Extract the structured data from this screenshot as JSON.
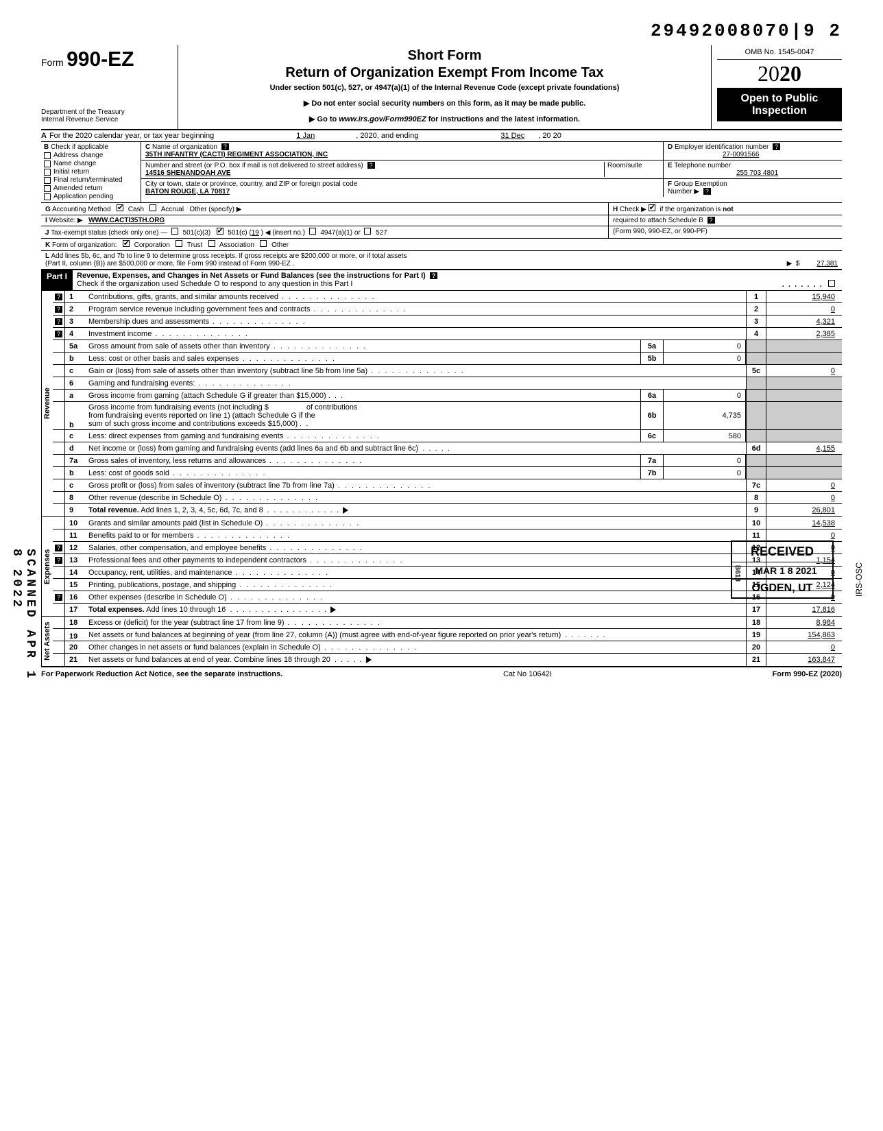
{
  "top_number": "29492008070|9  2",
  "form": {
    "prefix": "Form",
    "number": "990-EZ",
    "short_form": "Short Form",
    "title": "Return of Organization Exempt From Income Tax",
    "subtitle": "Under section 501(c), 527, or 4947(a)(1) of the Internal Revenue Code (except private foundations)",
    "warn1": "▶ Do not enter social security numbers on this form, as it may be made public.",
    "warn2_pre": "▶ Go to ",
    "warn2_url": "www.irs.gov/Form990EZ",
    "warn2_post": " for instructions and the latest information.",
    "dept1": "Department of the Treasury",
    "dept2": "Internal Revenue Service",
    "omb": "OMB No. 1545-0047",
    "year_outline": "20",
    "year_bold": "20",
    "open1": "Open to Public",
    "open2": "Inspection"
  },
  "rowA": {
    "label": "A",
    "text": "For the 2020 calendar year, or tax year beginning",
    "begin": "1 Jan",
    "mid": ", 2020, and ending",
    "end": "31 Dec",
    "tail": ", 20   20"
  },
  "B": {
    "label": "B",
    "check_if": "Check if applicable",
    "items": [
      "Address change",
      "Name change",
      "Initial return",
      "Final return/terminated",
      "Amended return",
      "Application pending"
    ]
  },
  "C": {
    "label": "C",
    "name_lbl": "Name of organization",
    "name": "35TH INFANTRY (CACTI)  REGIMENT ASSOCIATION, INC",
    "street_lbl": "Number and street (or P.O. box if mail is not delivered to street address)",
    "room_lbl": "Room/suite",
    "street": "14516 SHENANDOAH AVE",
    "city_lbl": "City or town, state or province, country, and ZIP or foreign postal code",
    "city": "BATON ROUGE, LA 70817"
  },
  "D": {
    "label": "D",
    "lbl": "Employer identification number",
    "val": "27-0091566"
  },
  "E": {
    "label": "E",
    "lbl": "Telephone number",
    "val": "255 703 4801"
  },
  "F": {
    "label": "F",
    "lbl": "Group Exemption",
    "lbl2": "Number ▶"
  },
  "G": {
    "label": "G",
    "lbl": "Accounting Method",
    "cash": "Cash",
    "accrual": "Accrual",
    "other": "Other (specify) ▶"
  },
  "H": {
    "label": "H",
    "text1": "Check ▶",
    "text2": "if the organization is ",
    "text3": "not",
    "text4": "required to attach Schedule B",
    "text5": "(Form 990, 990-EZ, or 990-PF)"
  },
  "I": {
    "label": "I",
    "lbl": "Website: ▶",
    "val": "WWW.CACTI35TH.ORG"
  },
  "J": {
    "label": "J",
    "lbl": "Tax-exempt status (check only one) —",
    "c3": "501(c)(3)",
    "c": "501(c) (",
    "cn": "19",
    "cpost": ") ◀ (insert no.)",
    "a1": "4947(a)(1) or",
    "s527": "527"
  },
  "K": {
    "label": "K",
    "lbl": "Form of organization:",
    "corp": "Corporation",
    "trust": "Trust",
    "assoc": "Association",
    "other": "Other"
  },
  "L": {
    "label": "L",
    "text1": "Add lines 5b, 6c, and 7b to line 9 to determine gross receipts. If gross receipts are $200,000 or more, or if total assets",
    "text2": "(Part II, column (B)) are $500,000 or more, file Form 990 instead of Form 990-EZ .",
    "val": "27,381"
  },
  "part1": {
    "hdr": "Part I",
    "title": "Revenue, Expenses, and Changes in Net Assets or Fund Balances (see the instructions for Part I)",
    "check_line": "Check if the organization used Schedule O to respond to any question in this Part I"
  },
  "revenue_label": "Revenue",
  "expenses_label": "Expenses",
  "netassets_label": "Net Assets",
  "lines": {
    "l1": {
      "no": "1",
      "desc": "Contributions, gifts, grants, and similar amounts received",
      "rno": "1",
      "rval": "15,940",
      "q": true
    },
    "l2": {
      "no": "2",
      "desc": "Program service revenue including government fees and contracts",
      "rno": "2",
      "rval": "0",
      "q": true
    },
    "l3": {
      "no": "3",
      "desc": "Membership dues and assessments",
      "rno": "3",
      "rval": "4,321",
      "q": true
    },
    "l4": {
      "no": "4",
      "desc": "Investment income",
      "rno": "4",
      "rval": "2,385",
      "q": true
    },
    "l5a": {
      "no": "5a",
      "desc": "Gross amount from sale of assets other than inventory",
      "mno": "5a",
      "mval": "0"
    },
    "l5b": {
      "no": "b",
      "desc": "Less: cost or other basis and sales expenses",
      "mno": "5b",
      "mval": "0"
    },
    "l5c": {
      "no": "c",
      "desc": "Gain or (loss) from sale of assets other than inventory (subtract line 5b from line 5a)",
      "rno": "5c",
      "rval": "0"
    },
    "l6": {
      "no": "6",
      "desc": "Gaming and fundraising events:"
    },
    "l6a": {
      "no": "a",
      "desc": "Gross income from gaming (attach Schedule G if greater than $15,000)",
      "mno": "6a",
      "mval": "0"
    },
    "l6b": {
      "no": "b",
      "desc_pre": "Gross income from fundraising events (not including  $",
      "desc_mid": "of contributions",
      "desc2": "from fundraising events reported on line 1) (attach Schedule G if the",
      "desc3": "sum of such gross income and contributions exceeds $15,000)",
      "mno": "6b",
      "mval": "4,735"
    },
    "l6c": {
      "no": "c",
      "desc": "Less: direct expenses from gaming and fundraising events",
      "mno": "6c",
      "mval": "580"
    },
    "l6d": {
      "no": "d",
      "desc": "Net income or (loss) from gaming and fundraising events (add lines 6a and 6b and subtract line 6c)",
      "rno": "6d",
      "rval": "4,155"
    },
    "l7a": {
      "no": "7a",
      "desc": "Gross sales of inventory, less returns and allowances",
      "mno": "7a",
      "mval": "0"
    },
    "l7b": {
      "no": "b",
      "desc": "Less: cost of goods sold",
      "mno": "7b",
      "mval": "0"
    },
    "l7c": {
      "no": "c",
      "desc": "Gross profit or (loss) from sales of inventory (subtract line 7b from line 7a)",
      "rno": "7c",
      "rval": "0"
    },
    "l8": {
      "no": "8",
      "desc": "Other revenue (describe in Schedule O)",
      "rno": "8",
      "rval": "0"
    },
    "l9": {
      "no": "9",
      "desc": "Total revenue. Add lines 1, 2, 3, 4, 5c, 6d, 7c, and 8",
      "rno": "9",
      "rval": "26,801",
      "bold": true
    },
    "l10": {
      "no": "10",
      "desc": "Grants and similar amounts paid (list in Schedule O)",
      "rno": "10",
      "rval": "14,538"
    },
    "l11": {
      "no": "11",
      "desc": "Benefits paid to or for members",
      "rno": "11",
      "rval": "0"
    },
    "l12": {
      "no": "12",
      "desc": "Salaries, other compensation, and employee benefits",
      "rno": "12",
      "rval": "0",
      "q": true
    },
    "l13": {
      "no": "13",
      "desc": "Professional fees and other payments to independent contractors",
      "rno": "13",
      "rval": "1,154",
      "q": true
    },
    "l14": {
      "no": "14",
      "desc": "Occupancy, rent, utilities, and maintenance",
      "rno": "14",
      "rval": "0"
    },
    "l15": {
      "no": "15",
      "desc": "Printing, publications, postage, and shipping",
      "rno": "15",
      "rval": "2,124"
    },
    "l16": {
      "no": "16",
      "desc": "Other expenses (describe in Schedule O)",
      "rno": "16",
      "rval": "0",
      "q": true
    },
    "l17": {
      "no": "17",
      "desc": "Total expenses. Add lines 10 through 16",
      "rno": "17",
      "rval": "17,816",
      "bold": true
    },
    "l18": {
      "no": "18",
      "desc": "Excess or (deficit) for the year (subtract line 17 from line 9)",
      "rno": "18",
      "rval": "8,984"
    },
    "l19": {
      "no": "19",
      "desc": "Net assets or fund balances at beginning of year (from line 27, column (A)) (must agree with end-of-year figure reported on prior year's return)",
      "rno": "19",
      "rval": "154,863"
    },
    "l20": {
      "no": "20",
      "desc": "Other changes in net assets or fund balances (explain in Schedule O)",
      "rno": "20",
      "rval": "0"
    },
    "l21": {
      "no": "21",
      "desc": "Net assets or fund balances at end of year. Combine lines 18 through 20",
      "rno": "21",
      "rval": "163,847"
    }
  },
  "stamp": {
    "received": "RECEIVED",
    "b618": "B618",
    "date": "MAR 1 8 2021",
    "loc": "OGDEN, UT",
    "irs": "IRS-OSC"
  },
  "side_stamp": "SCANNED APR 1 8 2022",
  "footer": {
    "left": "For Paperwork Reduction Act Notice, see the separate instructions.",
    "mid": "Cat  No  10642I",
    "right": "Form 990-EZ (2020)"
  }
}
